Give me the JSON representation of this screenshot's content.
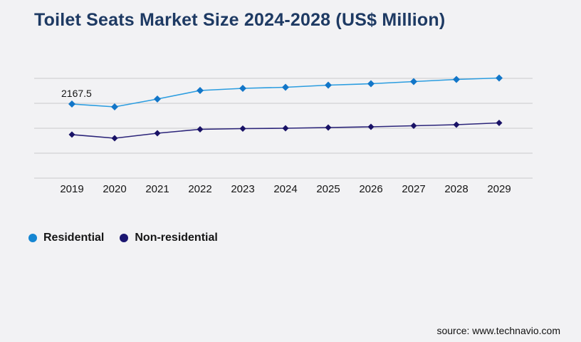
{
  "page": {
    "title": "Toilet Seats Market Size 2024-2028 (US$ Million)",
    "source": "source: www.technavio.com"
  },
  "chart_data": {
    "type": "line",
    "title": "Toilet Seats Market Size 2024-2028 (US$ Million)",
    "categories": [
      "2019",
      "2020",
      "2021",
      "2022",
      "2023",
      "2024",
      "2025",
      "2026",
      "2027",
      "2028",
      "2029"
    ],
    "series": [
      {
        "name": "Residential",
        "color": "#1276c8",
        "line_color": "#2b9de0",
        "values": [
          2167.5,
          2110,
          2267,
          2439,
          2482,
          2503,
          2546,
          2575,
          2618,
          2660,
          2689
        ]
      },
      {
        "name": "Non-residential",
        "color": "#191266",
        "line_color": "#2b2479",
        "values": [
          1554,
          1482,
          1582,
          1660,
          1675,
          1682,
          1696,
          1710,
          1732,
          1753,
          1789
        ]
      }
    ],
    "annotation": {
      "series": "Residential",
      "category": "2019",
      "text": "2167.5"
    },
    "xlabel": "",
    "ylabel": "",
    "grid": true,
    "y_axis_labels_visible": false,
    "legend_position": "bottom-left",
    "marker_shape": "diamond",
    "gridline_color": "#c9c9cd",
    "background_color": "#f2f2f4",
    "title_color": "#1e3a63"
  },
  "legend": {
    "items": [
      {
        "label": "Residential",
        "color": "#1586d2"
      },
      {
        "label": "Non-residential",
        "color": "#1b1670"
      }
    ]
  }
}
